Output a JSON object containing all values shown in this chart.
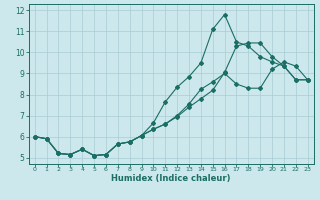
{
  "xlabel": "Humidex (Indice chaleur)",
  "bg_color": "#cce8ec",
  "grid_color": "#aaccd4",
  "line_color": "#1a6e64",
  "xlim": [
    -0.5,
    23.5
  ],
  "ylim": [
    4.7,
    12.3
  ],
  "xticks": [
    0,
    1,
    2,
    3,
    4,
    5,
    6,
    7,
    8,
    9,
    10,
    11,
    12,
    13,
    14,
    15,
    16,
    17,
    18,
    19,
    20,
    21,
    22,
    23
  ],
  "yticks": [
    5,
    6,
    7,
    8,
    9,
    10,
    11,
    12
  ],
  "line1_x": [
    0,
    1,
    2,
    3,
    4,
    5,
    6,
    7,
    8,
    9,
    10,
    11,
    12,
    13,
    14,
    15,
    16,
    17,
    18,
    19,
    20,
    21,
    22,
    23
  ],
  "line1_y": [
    6.0,
    5.9,
    5.2,
    5.15,
    5.4,
    5.1,
    5.15,
    5.65,
    5.75,
    6.05,
    6.35,
    6.6,
    6.95,
    7.4,
    7.8,
    8.2,
    9.05,
    10.3,
    10.45,
    10.45,
    9.8,
    9.35,
    8.7,
    8.7
  ],
  "line2_x": [
    0,
    1,
    2,
    3,
    4,
    5,
    6,
    7,
    8,
    9,
    10,
    11,
    12,
    13,
    14,
    15,
    16,
    17,
    18,
    19,
    20,
    21,
    22,
    23
  ],
  "line2_y": [
    6.0,
    5.9,
    5.2,
    5.15,
    5.4,
    5.1,
    5.15,
    5.65,
    5.75,
    6.05,
    6.65,
    7.65,
    8.35,
    8.85,
    9.5,
    11.1,
    11.8,
    10.5,
    10.3,
    9.8,
    9.55,
    9.35,
    8.7,
    8.7
  ],
  "line3_x": [
    0,
    1,
    2,
    3,
    4,
    5,
    6,
    7,
    8,
    9,
    10,
    11,
    12,
    13,
    14,
    15,
    16,
    17,
    18,
    19,
    20,
    21,
    22,
    23
  ],
  "line3_y": [
    6.0,
    5.9,
    5.2,
    5.15,
    5.4,
    5.1,
    5.15,
    5.65,
    5.75,
    6.05,
    6.35,
    6.6,
    7.0,
    7.55,
    8.25,
    8.6,
    9.0,
    8.5,
    8.3,
    8.3,
    9.2,
    9.55,
    9.35,
    8.7
  ]
}
